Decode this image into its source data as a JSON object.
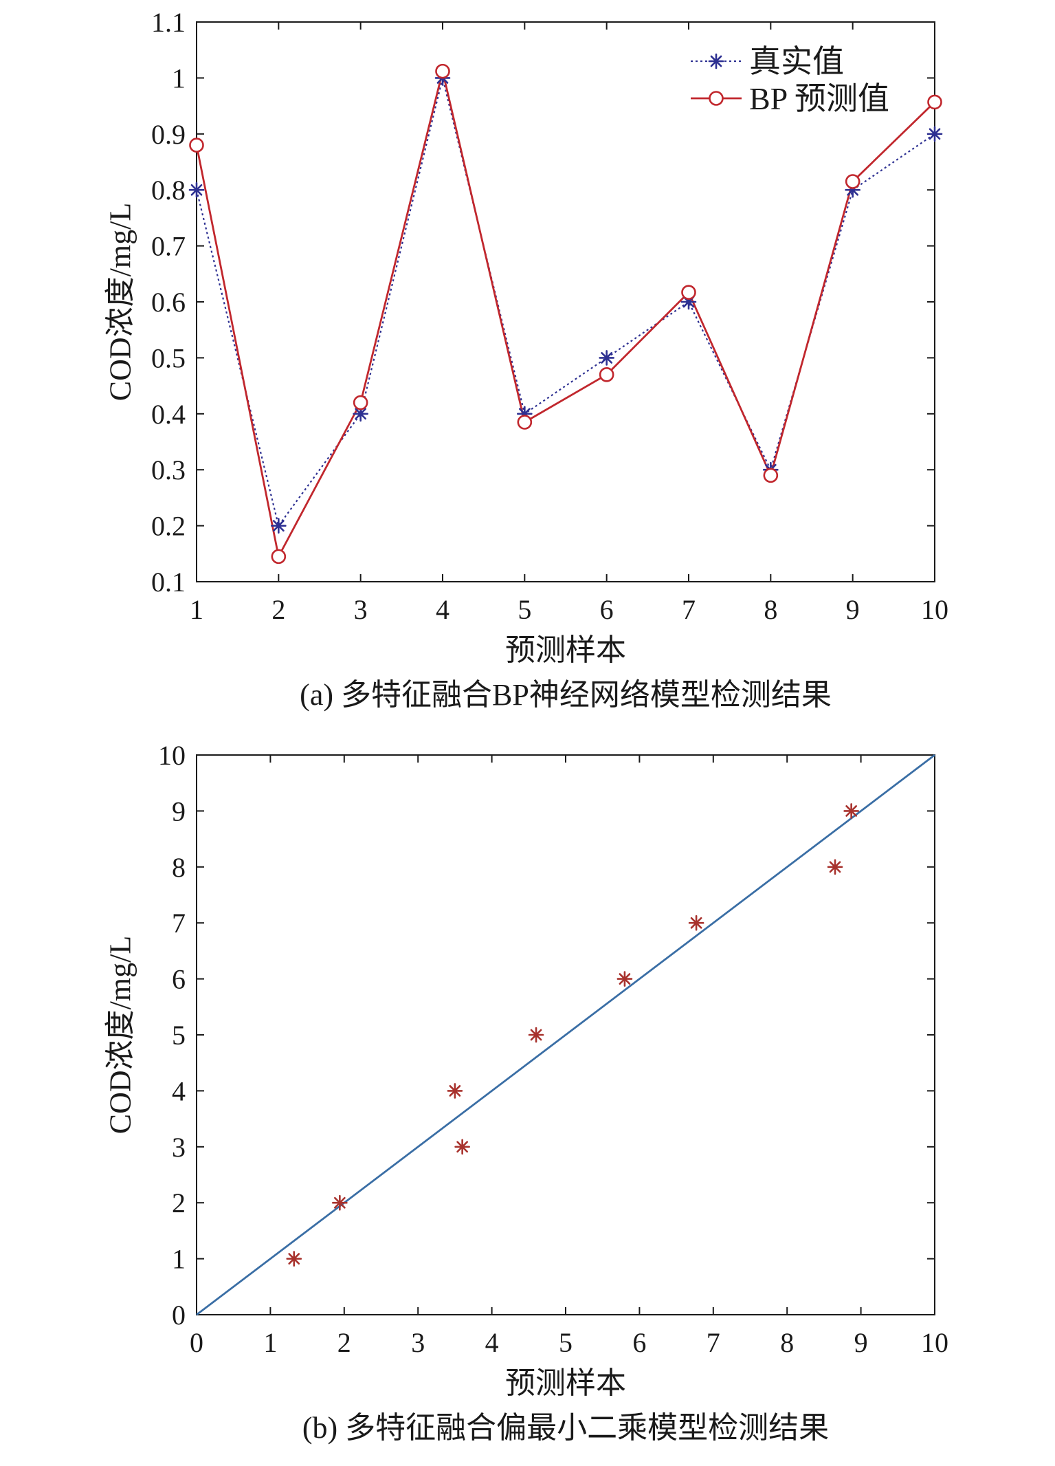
{
  "chart_data": [
    {
      "type": "line",
      "title": "",
      "caption": "(a) 多特征融合BP神经网络模型检测结果",
      "xlabel": "预测样本",
      "ylabel": "COD浓度/mg/L",
      "xlim": [
        1,
        10
      ],
      "ylim": [
        0.1,
        1.1
      ],
      "xticks": [
        "1",
        "2",
        "3",
        "4",
        "5",
        "6",
        "7",
        "8",
        "9",
        "10"
      ],
      "yticks": [
        "0.1",
        "0.2",
        "0.3",
        "0.4",
        "0.5",
        "0.6",
        "0.7",
        "0.8",
        "0.9",
        "1",
        "1.1"
      ],
      "grid": false,
      "legend": "top-right",
      "x": [
        1,
        2,
        3,
        4,
        5,
        6,
        7,
        8,
        9,
        10
      ],
      "series": [
        {
          "name": "真实值",
          "values": [
            0.8,
            0.2,
            0.4,
            1.0,
            0.4,
            0.5,
            0.6,
            0.3,
            0.8,
            0.9
          ],
          "color": "#2e3192",
          "marker": "asterisk",
          "line": "dotted"
        },
        {
          "name": "BP 预测值",
          "values": [
            0.88,
            0.145,
            0.42,
            1.012,
            0.385,
            0.47,
            0.617,
            0.29,
            0.815,
            0.957
          ],
          "color": "#c1272d",
          "marker": "circle",
          "line": "solid"
        }
      ]
    },
    {
      "type": "scatter",
      "title": "",
      "caption": "(b) 多特征融合偏最小二乘模型检测结果",
      "xlabel": "预测样本",
      "ylabel": "COD浓度/mg/L",
      "xlim": [
        0,
        10
      ],
      "ylim": [
        0,
        10
      ],
      "xticks": [
        "0",
        "1",
        "2",
        "3",
        "4",
        "5",
        "6",
        "7",
        "8",
        "9",
        "10"
      ],
      "yticks": [
        "0",
        "1",
        "2",
        "3",
        "4",
        "5",
        "6",
        "7",
        "8",
        "9",
        "10"
      ],
      "grid": false,
      "x": [
        1.32,
        1.94,
        3.5,
        3.6,
        4.6,
        5.8,
        6.77,
        8.65,
        8.87
      ],
      "y": [
        1,
        2,
        4,
        3,
        5,
        6,
        7,
        8,
        9
      ],
      "marker_color": "#a8322d",
      "reference_line": {
        "x": [
          0,
          10
        ],
        "y": [
          0,
          10
        ],
        "color": "#3a6ea5"
      }
    }
  ]
}
